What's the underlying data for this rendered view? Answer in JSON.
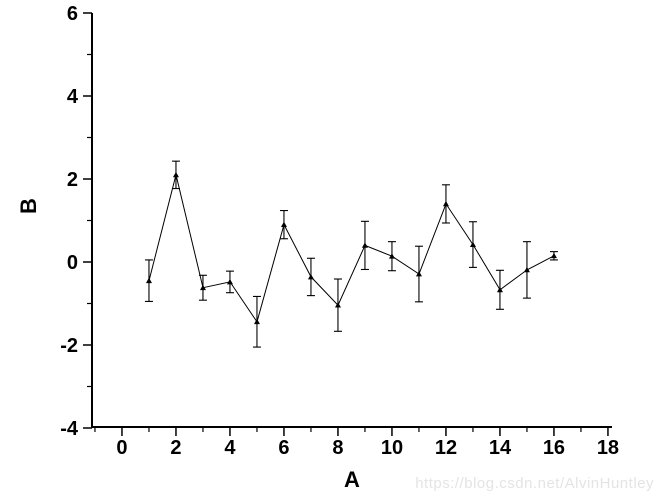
{
  "watermark": {
    "text": "https://blog.csdn.net/AlvinHuntley",
    "color": "#e4e4e6"
  },
  "chart_data": {
    "type": "line",
    "title": "",
    "xlabel": "A",
    "ylabel": "B",
    "grid": false,
    "legend": "none",
    "line_color": "#000000",
    "marker": "filled-triangle-up",
    "xlim": [
      -1.11,
      18.15
    ],
    "ylim": [
      -4,
      6
    ],
    "xticks": [
      0,
      2,
      4,
      6,
      8,
      10,
      12,
      14,
      16,
      18
    ],
    "xticks_minor": [
      -1,
      1,
      3,
      5,
      7,
      9,
      11,
      13,
      15,
      17
    ],
    "yticks": [
      -4,
      -2,
      0,
      2,
      4,
      6
    ],
    "yticks_minor": [
      -3,
      -1,
      1,
      3,
      5
    ],
    "x": [
      1,
      2,
      3,
      4,
      5,
      6,
      7,
      8,
      9,
      10,
      11,
      12,
      13,
      14,
      15,
      16
    ],
    "series": [
      {
        "name": "B",
        "values": [
          -0.45,
          2.1,
          -0.62,
          -0.48,
          -1.44,
          0.9,
          -0.36,
          -1.04,
          0.4,
          0.14,
          -0.29,
          1.4,
          0.42,
          -0.67,
          -0.19,
          0.15
        ],
        "errors": [
          0.5,
          0.33,
          0.3,
          0.26,
          0.61,
          0.34,
          0.45,
          0.63,
          0.58,
          0.35,
          0.67,
          0.46,
          0.55,
          0.47,
          0.68,
          0.1
        ]
      }
    ]
  }
}
